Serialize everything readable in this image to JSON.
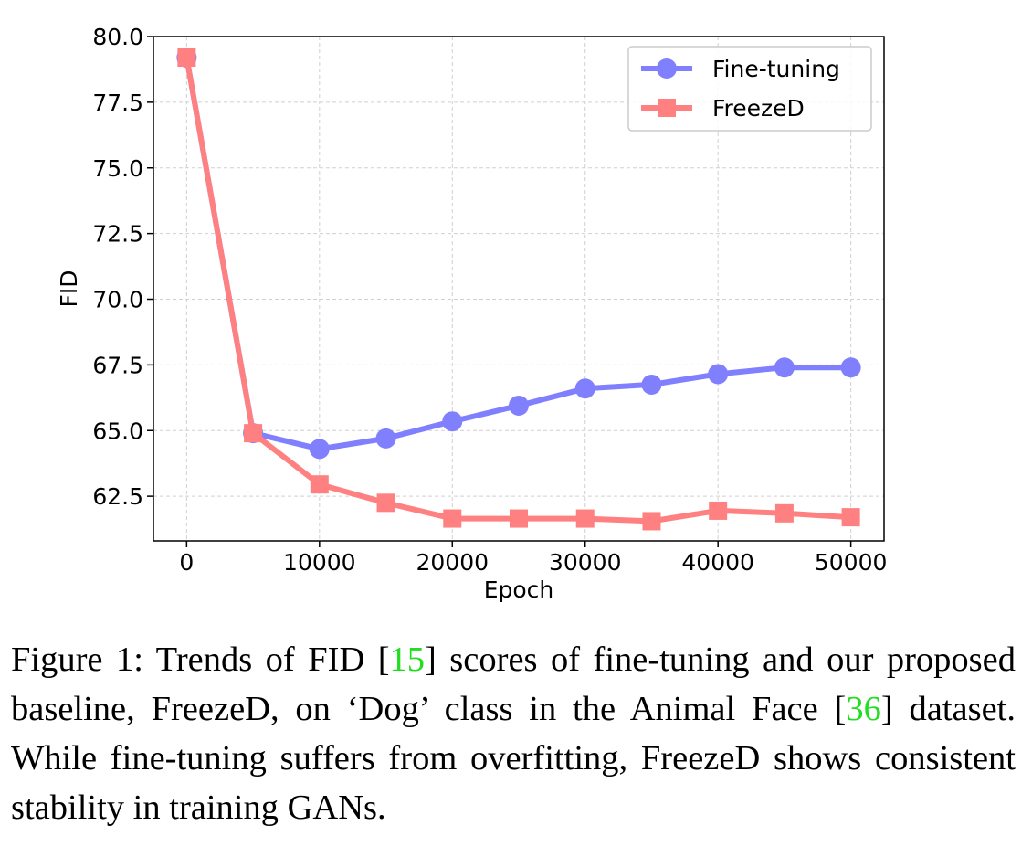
{
  "chart_data": {
    "type": "line",
    "title": "",
    "xlabel": "Epoch",
    "ylabel": "FID",
    "x": [
      0,
      5000,
      10000,
      15000,
      20000,
      25000,
      30000,
      35000,
      40000,
      45000,
      50000
    ],
    "xlim": [
      -2500,
      52500
    ],
    "ylim": [
      60.8,
      80.0
    ],
    "xticks": [
      0,
      10000,
      20000,
      30000,
      40000,
      50000
    ],
    "xtick_labels": [
      "0",
      "10000",
      "20000",
      "30000",
      "40000",
      "50000"
    ],
    "yticks": [
      62.5,
      65.0,
      67.5,
      70.0,
      72.5,
      75.0,
      77.5,
      80.0
    ],
    "ytick_labels": [
      "62.5",
      "65.0",
      "67.5",
      "70.0",
      "72.5",
      "75.0",
      "77.5",
      "80.0"
    ],
    "grid": true,
    "legend_position": "top-right",
    "series": [
      {
        "name": "Fine-tuning",
        "marker": "circle",
        "color": "#8080ff",
        "values": [
          79.2,
          64.9,
          64.3,
          64.7,
          65.35,
          65.95,
          66.6,
          66.75,
          67.15,
          67.4,
          67.4
        ]
      },
      {
        "name": "FreezeD",
        "marker": "square",
        "color": "#ff8080",
        "values": [
          79.2,
          64.9,
          62.95,
          62.25,
          61.65,
          61.65,
          61.65,
          61.55,
          61.95,
          61.85,
          61.7
        ]
      }
    ]
  },
  "caption": {
    "prefix": "Figure 1: Trends of FID [",
    "cite1": "15",
    "text1": "] scores of fine-tuning and our proposed baseline, FreezeD, on ‘Dog’ class in the Animal Face [",
    "cite2": "36",
    "text2": "] dataset.  While fine-tuning suffers from overfitting, FreezeD shows consistent stability in training GANs."
  }
}
